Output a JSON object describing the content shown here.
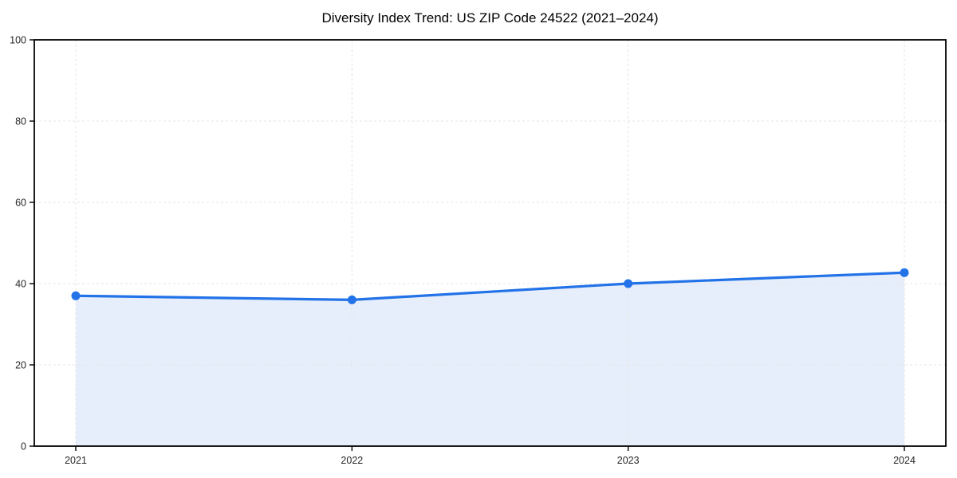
{
  "page": {
    "background_color": "#ffffff"
  },
  "chart_data": {
    "type": "area",
    "title": "Diversity Index Trend: US ZIP Code 24522 (2021–2024)",
    "subtitle": "",
    "xlabel": "",
    "ylabel": "",
    "categories": [
      "2021",
      "2022",
      "2023",
      "2024"
    ],
    "series": [
      {
        "name": "Diversity Index",
        "values": [
          37,
          36,
          40,
          42.7
        ]
      }
    ],
    "ylim": [
      0,
      100
    ],
    "yticks": [
      0,
      20,
      40,
      60,
      80,
      100
    ],
    "grid": true,
    "grid_style": "dashed",
    "legend_position": "none",
    "marker_shape": "circle",
    "colors": {
      "line": "#2272e8",
      "marker": "#2272e8",
      "area_fill": "#e7eefb",
      "grid": "#e6e6e6",
      "spine": "#000000",
      "tick_text": "#262626",
      "title_text": "#000000",
      "background": "#ffffff"
    }
  }
}
